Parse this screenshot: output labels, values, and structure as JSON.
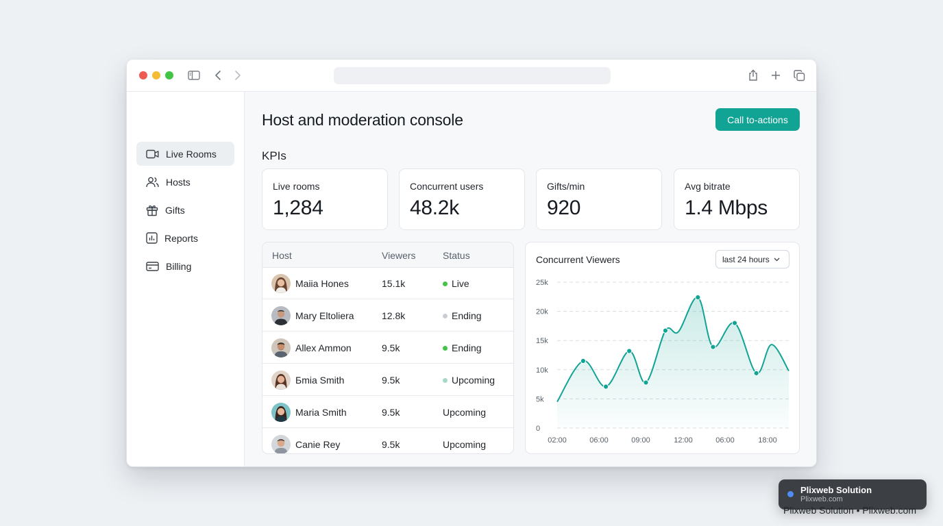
{
  "browser": {
    "url": "",
    "icons": [
      "sidebar-toggle-icon",
      "back-icon",
      "forward-icon",
      "share-icon",
      "new-tab-icon",
      "tabs-overview-icon"
    ]
  },
  "sidebar": {
    "items": [
      {
        "label": "Live Rooms",
        "icon": "video-icon",
        "active": true
      },
      {
        "label": "Hosts",
        "icon": "users-icon",
        "active": false
      },
      {
        "label": "Gifts",
        "icon": "gift-icon",
        "active": false
      },
      {
        "label": "Reports",
        "icon": "bar-chart-icon",
        "active": false
      },
      {
        "label": "Billing",
        "icon": "credit-card-icon",
        "active": false
      }
    ]
  },
  "header": {
    "title": "Host and moderation console",
    "cta_label": "Call to-actions"
  },
  "kpis": {
    "section_title": "KPIs",
    "items": [
      {
        "label": "Live rooms",
        "value": "1,284"
      },
      {
        "label": "Concurrent users",
        "value": "48.2k"
      },
      {
        "label": "Gifts/min",
        "value": "920"
      },
      {
        "label": "Avg bitrate",
        "value": "1.4 Mbps"
      }
    ]
  },
  "hosts_table": {
    "columns": [
      "Host",
      "Viewers",
      "Status"
    ],
    "rows": [
      {
        "name": "Maiia Hones",
        "viewers": "15.1k",
        "status": "Live"
      },
      {
        "name": "Mary Eltoliera",
        "viewers": "12.8k",
        "status": "Ending"
      },
      {
        "name": "Allex Ammon",
        "viewers": "9.5k",
        "status": "Ending"
      },
      {
        "name": "Бmia Smith",
        "viewers": "9.5k",
        "status": "Upcoming"
      },
      {
        "name": "Maria Smith",
        "viewers": "9.5k",
        "status": "Upcoming"
      },
      {
        "name": "Canie Rey",
        "viewers": "9.5k",
        "status": "Upcoming"
      }
    ]
  },
  "colors": {
    "accent": "#11a394",
    "status_live": "#43c447",
    "status_ending_grey": "#c9cdd2",
    "status_ending_green": "#43c447",
    "status_upcoming": "#a6d8c7"
  },
  "chart_panel": {
    "title": "Concurrent Viewers",
    "range_label": "last 24 hours"
  },
  "chart_data": {
    "type": "area",
    "title": "Concurrent Viewers",
    "x_tick_labels": [
      "02:00",
      "06:00",
      "09:00",
      "12:00",
      "06:00",
      "18:00"
    ],
    "y_tick_labels": [
      "0",
      "5k",
      "10k",
      "15k",
      "20k",
      "25k"
    ],
    "ylim": [
      0,
      25000
    ],
    "grid": true,
    "points": [
      {
        "x": 0.0,
        "y": 4500
      },
      {
        "x": 1.2,
        "y": 11500
      },
      {
        "x": 2.25,
        "y": 7100
      },
      {
        "x": 3.33,
        "y": 13200
      },
      {
        "x": 4.1,
        "y": 7800
      },
      {
        "x": 5.0,
        "y": 16700
      },
      {
        "x": 5.6,
        "y": 16500
      },
      {
        "x": 6.5,
        "y": 22400
      },
      {
        "x": 7.2,
        "y": 13900
      },
      {
        "x": 8.2,
        "y": 18000
      },
      {
        "x": 9.2,
        "y": 9400
      },
      {
        "x": 9.9,
        "y": 14300
      },
      {
        "x": 10.7,
        "y": 9800
      }
    ],
    "markers": [
      1.2,
      2.25,
      3.33,
      4.1,
      5.0,
      6.5,
      7.2,
      8.2,
      9.2
    ]
  },
  "toast": {
    "name": "Plixweb Solution",
    "site": "Plixweb.com"
  },
  "footer": {
    "credit": "Plixweb Solution • Plixweb.com"
  }
}
